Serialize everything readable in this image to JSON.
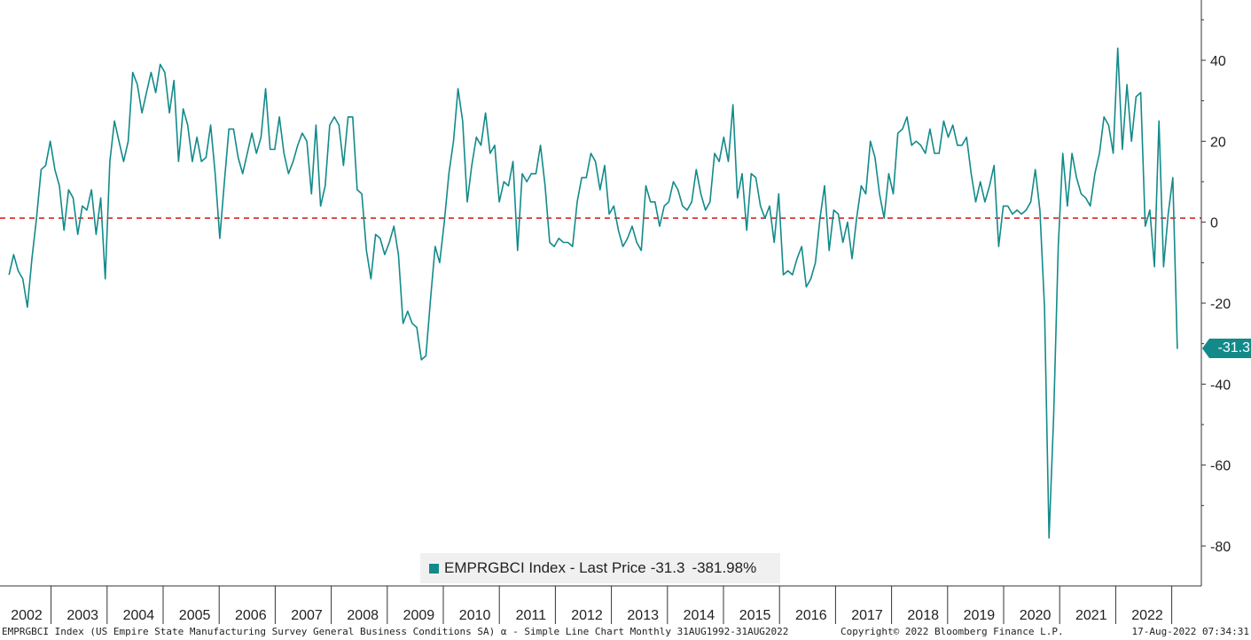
{
  "colors": {
    "series": "#138a8a",
    "zero_line": "#d62728",
    "axis": "#333333"
  },
  "chart_data": {
    "type": "line",
    "title": "",
    "xlabel": "",
    "ylabel": "",
    "ylim": [
      -90,
      55
    ],
    "yticks": [
      40,
      20,
      0,
      -20,
      -40,
      -60,
      -80
    ],
    "reference_line": {
      "value": 1,
      "style": "dashed"
    },
    "x_start_year": 2001.75,
    "x_end_year": 2022.6,
    "year_labels": [
      "2002",
      "2003",
      "2004",
      "2005",
      "2006",
      "2007",
      "2008",
      "2009",
      "2010",
      "2011",
      "2012",
      "2013",
      "2014",
      "2015",
      "2016",
      "2017",
      "2018",
      "2019",
      "2020",
      "2021",
      "2022"
    ],
    "series": [
      {
        "legend_label": "EMPRGBCI Index - Last Price",
        "last_value_label": "-31.3",
        "pct_change_label": "-381.98%",
        "last_value_tag": "-31.3",
        "values": [
          -13,
          -8,
          -12,
          -14,
          -21,
          -9,
          1,
          13,
          14,
          20,
          13,
          9,
          -2,
          8,
          6,
          -3,
          4,
          3,
          8,
          -3,
          6,
          -14,
          15,
          25,
          20,
          15,
          20,
          37,
          34,
          27,
          32,
          37,
          32,
          39,
          37,
          27,
          35,
          15,
          28,
          24,
          15,
          21,
          15,
          16,
          24,
          12,
          -4,
          10,
          23,
          23,
          16,
          12,
          17,
          22,
          17,
          21,
          33,
          18,
          18,
          26,
          17,
          12,
          15,
          19,
          22,
          20,
          7,
          24,
          4,
          9,
          24,
          26,
          24,
          14,
          26,
          26,
          8,
          7,
          -7,
          -14,
          -3,
          -4,
          -8,
          -5,
          -1,
          -8,
          -25,
          -22,
          -25,
          -26,
          -34,
          -33,
          -19,
          -6,
          -10,
          0,
          12,
          20,
          33,
          25,
          5,
          14,
          21,
          19,
          27,
          17,
          19,
          5,
          10,
          9,
          15,
          -7,
          12,
          10,
          12,
          12,
          19,
          9,
          -5,
          -6,
          -4,
          -5,
          -5,
          -6,
          5,
          11,
          11,
          17,
          15,
          8,
          14,
          2,
          4,
          -2,
          -6,
          -4,
          -1,
          -5,
          -7,
          9,
          5,
          5,
          -1,
          4,
          5,
          10,
          8,
          4,
          3,
          5,
          13,
          7,
          3,
          5,
          17,
          15,
          21,
          15,
          29,
          6,
          12,
          -2,
          12,
          11,
          4,
          1,
          4,
          -5,
          7,
          -13,
          -12,
          -13,
          -9,
          -6,
          -16,
          -14,
          -10,
          1,
          9,
          -7,
          3,
          2,
          -5,
          0,
          -9,
          1,
          9,
          7,
          20,
          16,
          7,
          1,
          12,
          7,
          22,
          23,
          26,
          19,
          20,
          19,
          17,
          23,
          17,
          17,
          25,
          21,
          24,
          19,
          19,
          21,
          12,
          5,
          10,
          5,
          9,
          14,
          -6,
          4,
          4,
          2,
          3,
          2,
          3,
          5,
          13,
          3,
          -21,
          -78,
          -48,
          -6,
          17,
          4,
          17,
          11,
          7,
          6,
          4,
          12,
          17,
          26,
          24,
          17,
          43,
          18,
          34,
          20,
          31,
          32,
          -1,
          3,
          -11,
          25,
          -11,
          2,
          11,
          -31.3
        ]
      }
    ]
  },
  "footer": {
    "left": "EMPRGBCI Index (US Empire State Manufacturing Survey General Business Conditions SA) α - Simple Line Chart  Monthly 31AUG1992-31AUG2022",
    "middle": "Copyright© 2022 Bloomberg Finance L.P.",
    "right": "17-Aug-2022 07:34:31"
  }
}
